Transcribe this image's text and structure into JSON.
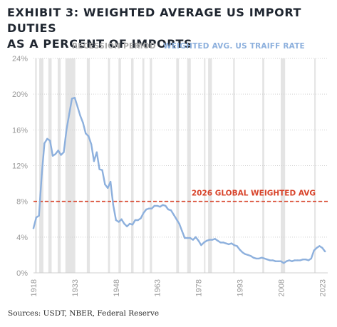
{
  "title_line1": "EXHIBIT 3: WEIGHTED AVERAGE US IMPORT DUTIES",
  "title_line2": "AS A PERCENT OF IMPORTS",
  "legend": {
    "recession_label": "RECESSION PERIOD",
    "tariff_label": "WEIGHTED AVG. US TRAIFF RATE"
  },
  "source": "Sources: USDT, NBER, Federal Reserve",
  "colors": {
    "recession_band": "#e4e4e4",
    "tariff_line": "#8db0dd",
    "reference_line": "#d8442b",
    "axis_text": "#9a9a9a",
    "legend_text": "#a8a8a8",
    "grid": "#d0d0d0"
  },
  "chart_data": {
    "type": "line",
    "title": "EXHIBIT 3: WEIGHTED AVERAGE US IMPORT DUTIES AS A PERCENT OF IMPORTS",
    "xlabel": "",
    "ylabel": "",
    "xlim": [
      1918,
      2025
    ],
    "ylim": [
      0,
      24
    ],
    "grid": true,
    "legend_placement": "top",
    "x_ticks": [
      "1918",
      "1933",
      "1948",
      "1963",
      "1978",
      "1993",
      "2008",
      "2023"
    ],
    "y_ticks": [
      "0%",
      "4%",
      "8%",
      "12%",
      "16%",
      "20%",
      "24%"
    ],
    "y_tick_values": [
      0,
      4,
      8,
      12,
      16,
      20,
      24
    ],
    "x_tick_values": [
      1918,
      1933,
      1948,
      1963,
      1978,
      1993,
      2008,
      2023
    ],
    "recession_periods": [
      [
        1918.6,
        1919.2
      ],
      [
        1920.1,
        1921.6
      ],
      [
        1923.4,
        1924.6
      ],
      [
        1926.8,
        1927.9
      ],
      [
        1929.6,
        1933.2
      ],
      [
        1937.4,
        1938.5
      ],
      [
        1945.1,
        1945.8
      ],
      [
        1948.9,
        1949.8
      ],
      [
        1953.5,
        1954.4
      ],
      [
        1957.6,
        1958.3
      ],
      [
        1960.3,
        1961.1
      ],
      [
        1969.9,
        1970.9
      ],
      [
        1973.9,
        1975.2
      ],
      [
        1980.0,
        1980.5
      ],
      [
        1981.5,
        1982.9
      ],
      [
        1990.6,
        1991.2
      ],
      [
        2001.2,
        2001.9
      ],
      [
        2007.9,
        2009.5
      ],
      [
        2020.1,
        2020.4
      ]
    ],
    "series": [
      {
        "name": "WEIGHTED AVG. US TRAIFF RATE",
        "x": [
          1918,
          1919,
          1920,
          1921,
          1922,
          1923,
          1924,
          1925,
          1926,
          1927,
          1928,
          1929,
          1930,
          1931,
          1932,
          1933,
          1934,
          1935,
          1936,
          1937,
          1938,
          1939,
          1940,
          1941,
          1942,
          1943,
          1944,
          1945,
          1946,
          1947,
          1948,
          1949,
          1950,
          1951,
          1952,
          1953,
          1954,
          1955,
          1956,
          1957,
          1958,
          1959,
          1960,
          1961,
          1962,
          1963,
          1964,
          1965,
          1966,
          1967,
          1968,
          1969,
          1970,
          1971,
          1972,
          1973,
          1974,
          1975,
          1976,
          1977,
          1978,
          1979,
          1980,
          1981,
          1982,
          1983,
          1984,
          1985,
          1986,
          1987,
          1988,
          1989,
          1990,
          1991,
          1992,
          1993,
          1994,
          1995,
          1996,
          1997,
          1998,
          1999,
          2000,
          2001,
          2002,
          2003,
          2004,
          2005,
          2006,
          2007,
          2008,
          2009,
          2010,
          2011,
          2012,
          2013,
          2014,
          2015,
          2016,
          2017,
          2018,
          2019,
          2020,
          2021,
          2022,
          2023,
          2024
        ],
        "values": [
          5.0,
          6.2,
          6.4,
          11.0,
          14.5,
          15.0,
          14.8,
          13.1,
          13.3,
          13.7,
          13.2,
          13.5,
          16.0,
          17.8,
          19.5,
          19.6,
          18.6,
          17.6,
          16.8,
          15.6,
          15.3,
          14.4,
          12.5,
          13.5,
          11.6,
          11.5,
          9.9,
          9.5,
          10.2,
          7.6,
          5.9,
          5.7,
          6.0,
          5.5,
          5.2,
          5.5,
          5.4,
          5.9,
          5.9,
          6.1,
          6.7,
          7.1,
          7.2,
          7.2,
          7.5,
          7.5,
          7.4,
          7.6,
          7.5,
          7.1,
          7.0,
          6.5,
          6.0,
          5.5,
          4.7,
          3.9,
          3.9,
          3.9,
          3.7,
          4.0,
          3.6,
          3.1,
          3.4,
          3.6,
          3.7,
          3.7,
          3.8,
          3.6,
          3.4,
          3.4,
          3.3,
          3.2,
          3.3,
          3.1,
          3.0,
          2.6,
          2.3,
          2.1,
          2.0,
          1.9,
          1.7,
          1.6,
          1.6,
          1.7,
          1.6,
          1.5,
          1.4,
          1.4,
          1.3,
          1.3,
          1.3,
          1.1,
          1.3,
          1.4,
          1.3,
          1.4,
          1.4,
          1.4,
          1.5,
          1.5,
          1.4,
          1.6,
          2.5,
          2.8,
          3.0,
          2.8,
          2.4
        ]
      }
    ],
    "reference_lines": [
      {
        "label": "2026 GLOBAL WEIGHTED AVG",
        "value": 8.0
      }
    ]
  }
}
